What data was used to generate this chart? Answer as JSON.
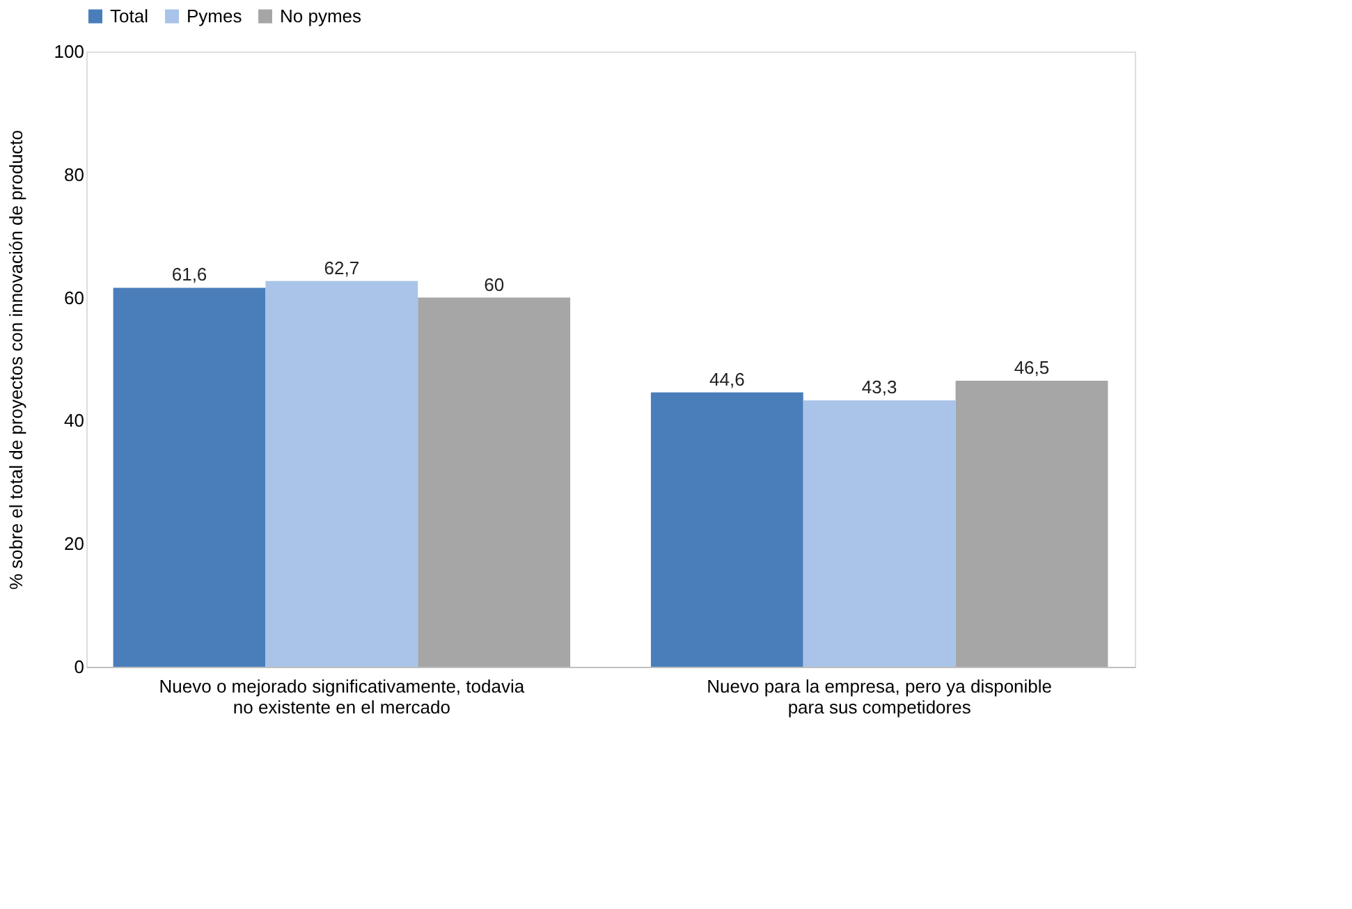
{
  "chart_data": {
    "type": "bar",
    "ylabel": "% sobre el total de proyectos con innovación de producto",
    "categories": [
      "Nuevo o mejorado significativamente, todavia no existente en el mercado",
      "Nuevo para la empresa, pero ya disponible para sus competidores"
    ],
    "series": [
      {
        "name": "Total",
        "color": "#4a7ebb",
        "values": [
          61.6,
          44.6
        ]
      },
      {
        "name": "Pymes",
        "color": "#a9c4e8",
        "values": [
          62.7,
          43.3
        ]
      },
      {
        "name": "No pymes",
        "color": "#a6a6a6",
        "values": [
          60,
          46.5
        ]
      }
    ],
    "value_labels": [
      [
        "61,6",
        "44,6"
      ],
      [
        "62,7",
        "43,3"
      ],
      [
        "60",
        "46,5"
      ]
    ],
    "ylim": [
      0,
      100
    ],
    "yticks": [
      0,
      20,
      40,
      60,
      80,
      100
    ],
    "grid": false,
    "legend": "top"
  }
}
